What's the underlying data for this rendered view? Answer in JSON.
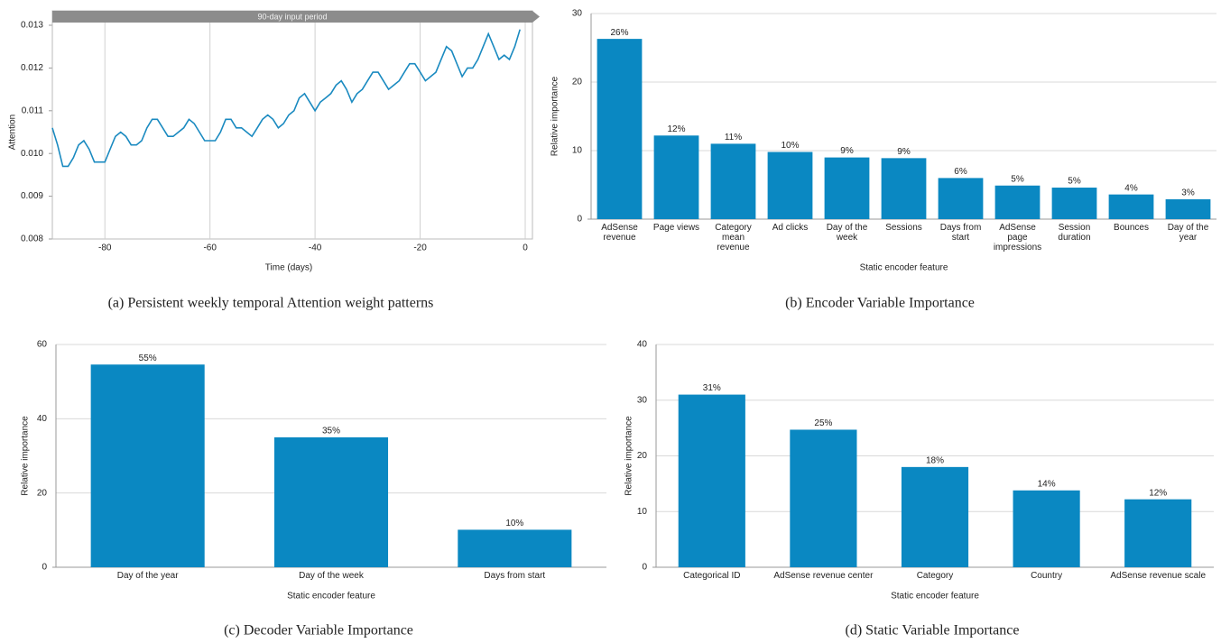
{
  "chart_data": [
    {
      "type": "line",
      "annotation": "90-day input period",
      "xlabel": "Time (days)",
      "ylabel": "Attention",
      "caption": "(a) Persistent weekly temporal Attention weight patterns",
      "color": "#1a8ac0",
      "x": [
        -90,
        -89,
        -88,
        -87,
        -86,
        -85,
        -84,
        -83,
        -82,
        -81,
        -80,
        -79,
        -78,
        -77,
        -76,
        -75,
        -74,
        -73,
        -72,
        -71,
        -70,
        -69,
        -68,
        -67,
        -66,
        -65,
        -64,
        -63,
        -62,
        -61,
        -60,
        -59,
        -58,
        -57,
        -56,
        -55,
        -54,
        -53,
        -52,
        -51,
        -50,
        -49,
        -48,
        -47,
        -46,
        -45,
        -44,
        -43,
        -42,
        -41,
        -40,
        -39,
        -38,
        -37,
        -36,
        -35,
        -34,
        -33,
        -32,
        -31,
        -30,
        -29,
        -28,
        -27,
        -26,
        -25,
        -24,
        -23,
        -22,
        -21,
        -20,
        -19,
        -18,
        -17,
        -16,
        -15,
        -14,
        -13,
        -12,
        -11,
        -10,
        -9,
        -8,
        -7,
        -6,
        -5,
        -4,
        -3,
        -2,
        -1
      ],
      "values": [
        0.0106,
        0.0102,
        0.0097,
        0.0097,
        0.0099,
        0.0102,
        0.0103,
        0.0101,
        0.0098,
        0.0098,
        0.0098,
        0.0101,
        0.0104,
        0.0105,
        0.0104,
        0.0102,
        0.0102,
        0.0103,
        0.0106,
        0.0108,
        0.0108,
        0.0106,
        0.0104,
        0.0104,
        0.0105,
        0.0106,
        0.0108,
        0.0107,
        0.0105,
        0.0103,
        0.0103,
        0.0103,
        0.0105,
        0.0108,
        0.0108,
        0.0106,
        0.0106,
        0.0105,
        0.0104,
        0.0106,
        0.0108,
        0.0109,
        0.0108,
        0.0106,
        0.0107,
        0.0109,
        0.011,
        0.0113,
        0.0114,
        0.0112,
        0.011,
        0.0112,
        0.0113,
        0.0114,
        0.0116,
        0.0117,
        0.0115,
        0.0112,
        0.0114,
        0.0115,
        0.0117,
        0.0119,
        0.0119,
        0.0117,
        0.0115,
        0.0116,
        0.0117,
        0.0119,
        0.0121,
        0.0121,
        0.0119,
        0.0117,
        0.0118,
        0.0119,
        0.0122,
        0.0125,
        0.0124,
        0.0121,
        0.0118,
        0.012,
        0.012,
        0.0122,
        0.0125,
        0.0128,
        0.0125,
        0.0122,
        0.0123,
        0.0122,
        0.0125,
        0.0129
      ],
      "xlim": [
        -90,
        0
      ],
      "xticks": [
        -80,
        -60,
        -40,
        -20,
        0
      ],
      "ylim": [
        0.008,
        0.013
      ],
      "yticks": [
        0.008,
        0.009,
        {
          "value": 0.01,
          "label": "0.010"
        },
        0.011,
        0.012,
        0.013
      ],
      "grid": "x"
    },
    {
      "type": "bar",
      "caption": "(b) Encoder Variable Importance",
      "xlabel": "Static encoder feature",
      "ylabel": "Relative importance",
      "color": "#0a88c2",
      "categories": [
        "AdSense revenue",
        "Page views",
        "Category mean revenue",
        "Ad clicks",
        "Day of the week",
        "Sessions",
        "Days from start",
        "AdSense page impressions",
        "Session duration",
        "Bounces",
        "Day of the year"
      ],
      "values": [
        26.3,
        12.2,
        11,
        9.8,
        9,
        8.9,
        6,
        4.9,
        4.6,
        3.6,
        2.9
      ],
      "value_labels": [
        "26%",
        "12%",
        "11%",
        "10%",
        "9%",
        "9%",
        "6%",
        "5%",
        "5%",
        "4%",
        "3%"
      ],
      "ylim": [
        0,
        30
      ],
      "yticks": [
        0,
        10,
        20,
        30
      ],
      "grid": "y"
    },
    {
      "type": "bar",
      "caption": "(c) Decoder Variable Importance",
      "xlabel": "Static encoder feature",
      "ylabel": "Relative importance",
      "color": "#0a88c2",
      "categories": [
        "Day of the year",
        "Day of the week",
        "Days from start"
      ],
      "values": [
        54.6,
        35,
        10.1
      ],
      "value_labels": [
        "55%",
        "35%",
        "10%"
      ],
      "ylim": [
        0,
        60
      ],
      "yticks": [
        0,
        20,
        40,
        60
      ],
      "grid": "y"
    },
    {
      "type": "bar",
      "caption": "(d) Static Variable Importance",
      "xlabel": "Static encoder feature",
      "ylabel": "Relative importance",
      "color": "#0a88c2",
      "categories": [
        "Categorical ID",
        "AdSense revenue center",
        "Category",
        "Country",
        "AdSense revenue scale"
      ],
      "values": [
        31,
        24.7,
        18,
        13.8,
        12.2
      ],
      "value_labels": [
        "31%",
        "25%",
        "18%",
        "14%",
        "12%"
      ],
      "ylim": [
        0,
        40
      ],
      "yticks": [
        0,
        10,
        20,
        30,
        40
      ],
      "grid": "y"
    }
  ]
}
